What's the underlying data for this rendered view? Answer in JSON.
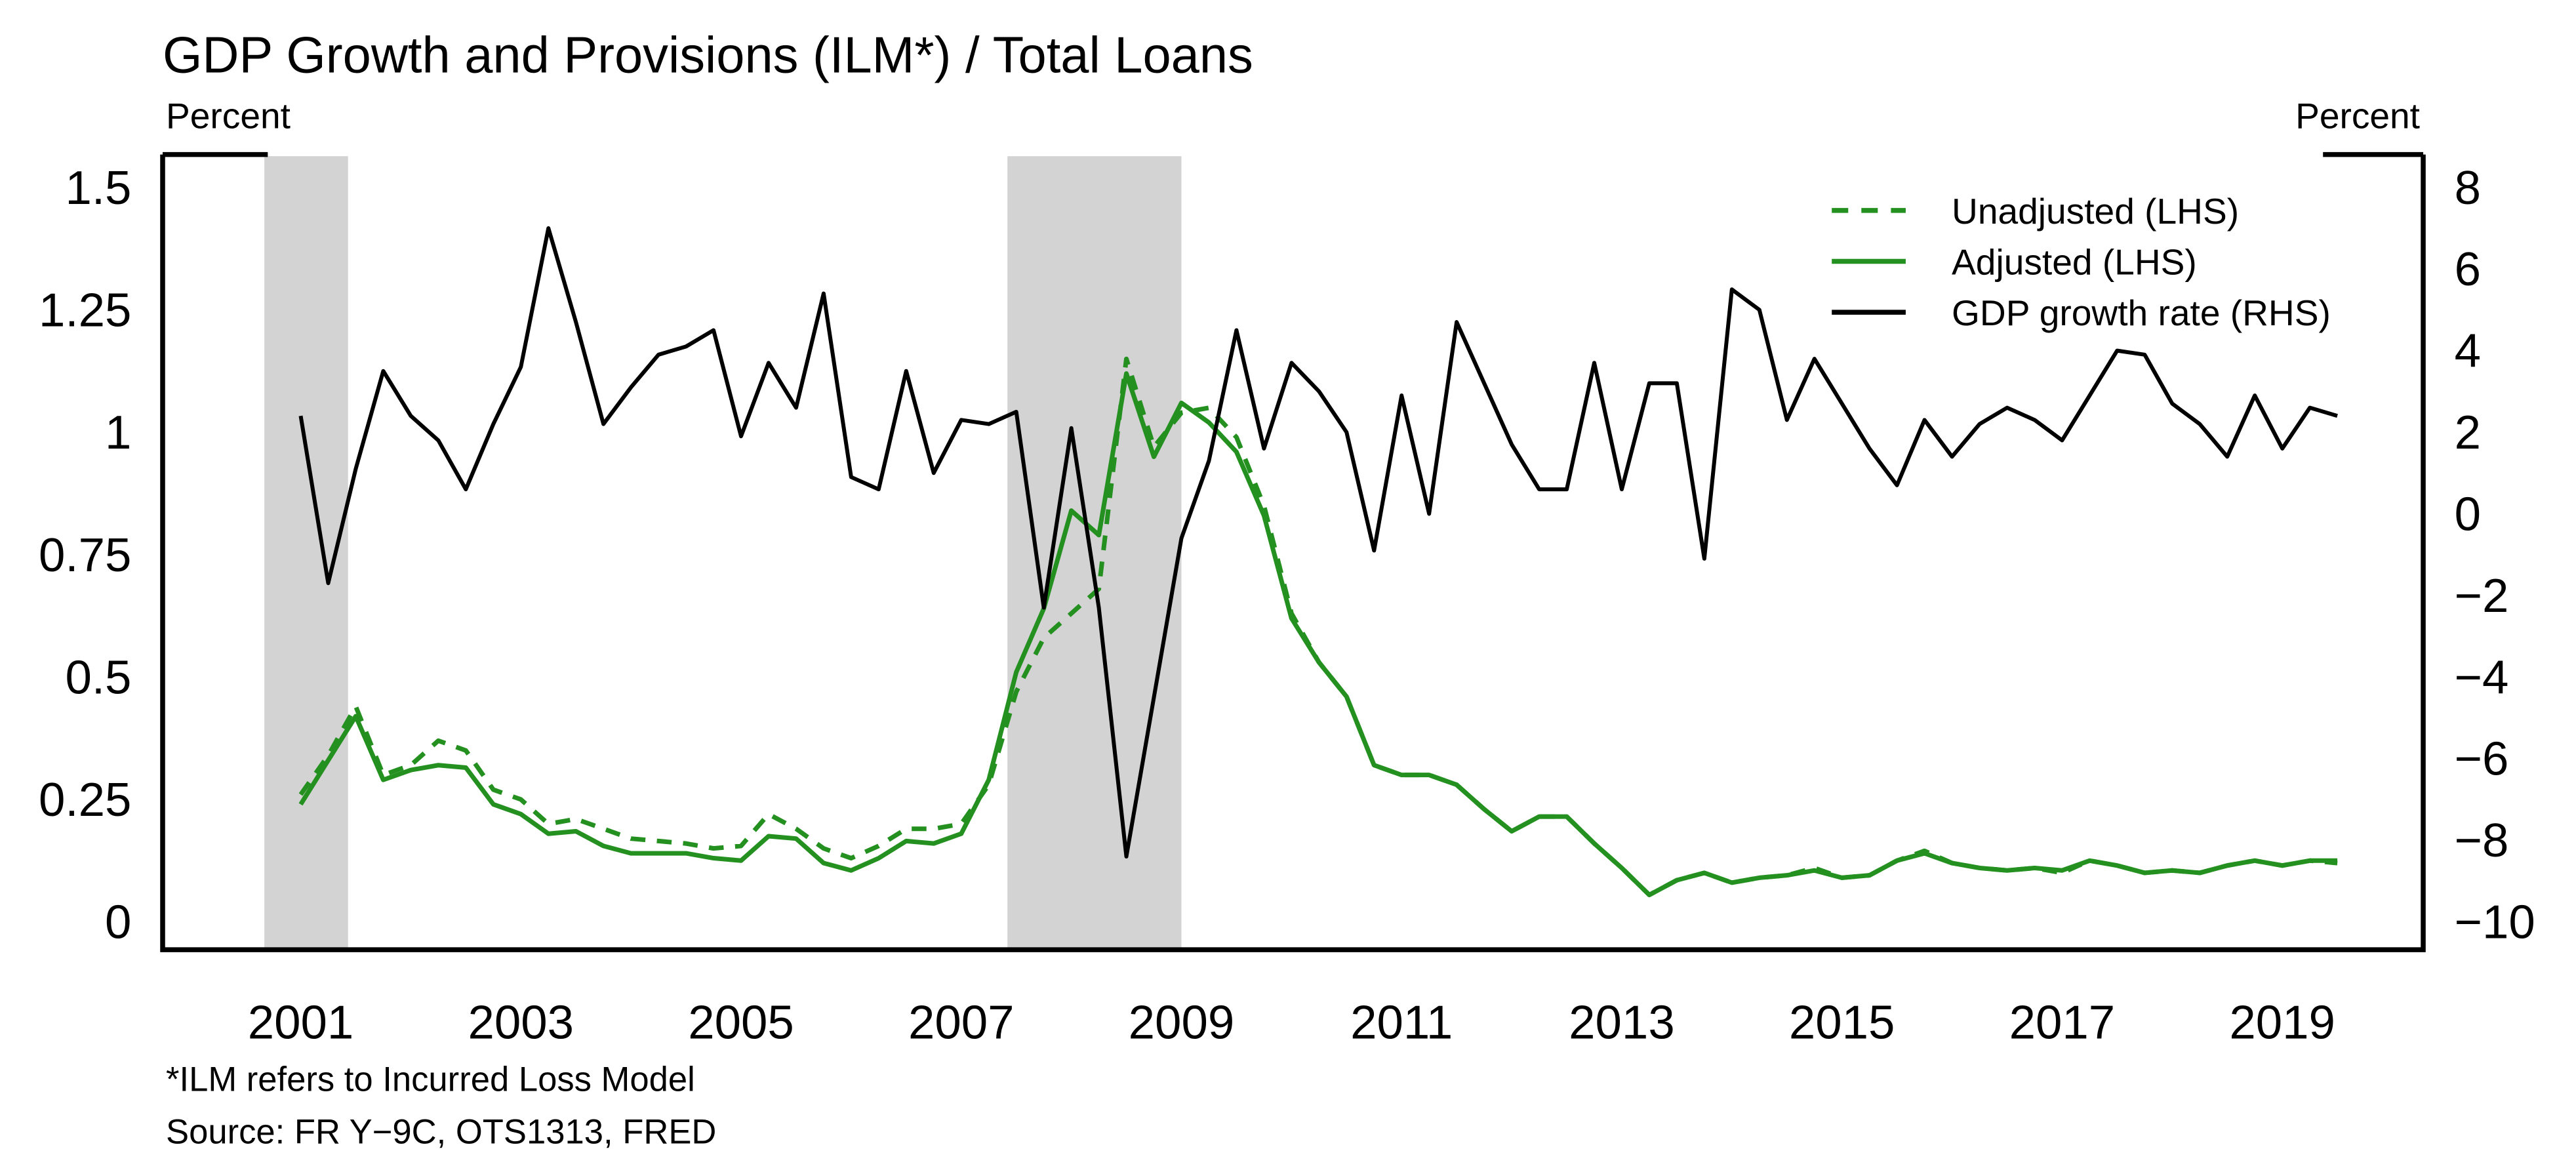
{
  "chart_data": {
    "type": "line",
    "title": "GDP Growth and Provisions (ILM*) / Total Loans",
    "y_label": "Percent",
    "y2_label": "Percent",
    "notes": [
      "*ILM refers to Incurred Loss Model",
      "Source: FR Y−9C, OTS1313, FRED"
    ],
    "x": [
      2001,
      2001.25,
      2001.5,
      2001.75,
      2002,
      2002.25,
      2002.5,
      2002.75,
      2003,
      2003.25,
      2003.5,
      2003.75,
      2004,
      2004.25,
      2004.5,
      2004.75,
      2005,
      2005.25,
      2005.5,
      2005.75,
      2006,
      2006.25,
      2006.5,
      2006.75,
      2007,
      2007.25,
      2007.5,
      2007.75,
      2008,
      2008.25,
      2008.5,
      2008.75,
      2009,
      2009.25,
      2009.5,
      2009.75,
      2010,
      2010.25,
      2010.5,
      2010.75,
      2011,
      2011.25,
      2011.5,
      2011.75,
      2012,
      2012.25,
      2012.5,
      2012.75,
      2013,
      2013.25,
      2013.5,
      2013.75,
      2014,
      2014.25,
      2014.5,
      2014.75,
      2015,
      2015.25,
      2015.5,
      2015.75,
      2016,
      2016.25,
      2016.5,
      2016.75,
      2017,
      2017.25,
      2017.5,
      2017.75,
      2018,
      2018.25,
      2018.5,
      2018.75,
      2019,
      2019.25,
      2019.5
    ],
    "series": [
      {
        "name": "Unadjusted (LHS)",
        "color": "#23901f",
        "dashed": true,
        "values": [
          0.26,
          0.34,
          0.44,
          0.3,
          0.32,
          0.37,
          0.35,
          0.27,
          0.25,
          0.2,
          0.21,
          0.19,
          0.17,
          0.165,
          0.16,
          0.15,
          0.155,
          0.22,
          0.19,
          0.15,
          0.13,
          0.155,
          0.19,
          0.19,
          0.2,
          0.28,
          0.47,
          0.58,
          0.63,
          0.68,
          1.15,
          0.97,
          1.04,
          1.05,
          0.99,
          0.85,
          0.63,
          0.53,
          0.46,
          0.32,
          0.3,
          0.3,
          0.28,
          0.23,
          0.185,
          0.215,
          0.215,
          0.16,
          0.11,
          0.055,
          0.085,
          0.1,
          0.08,
          0.09,
          0.095,
          0.11,
          0.09,
          0.095,
          0.125,
          0.145,
          0.12,
          0.11,
          0.105,
          0.11,
          0.1,
          0.125,
          0.115,
          0.1,
          0.105,
          0.1,
          0.115,
          0.125,
          0.115,
          0.125,
          0.12
        ]
      },
      {
        "name": "Adjusted (LHS)",
        "color": "#23901f",
        "dashed": false,
        "values": [
          0.24,
          0.33,
          0.42,
          0.29,
          0.31,
          0.32,
          0.315,
          0.24,
          0.22,
          0.18,
          0.185,
          0.155,
          0.14,
          0.14,
          0.14,
          0.13,
          0.125,
          0.175,
          0.17,
          0.12,
          0.105,
          0.13,
          0.165,
          0.16,
          0.18,
          0.29,
          0.51,
          0.64,
          0.84,
          0.79,
          1.12,
          0.95,
          1.06,
          1.02,
          0.96,
          0.83,
          0.62,
          0.53,
          0.46,
          0.32,
          0.3,
          0.3,
          0.28,
          0.23,
          0.185,
          0.215,
          0.215,
          0.16,
          0.11,
          0.055,
          0.085,
          0.1,
          0.08,
          0.09,
          0.095,
          0.105,
          0.09,
          0.095,
          0.125,
          0.14,
          0.12,
          0.11,
          0.105,
          0.11,
          0.105,
          0.125,
          0.115,
          0.1,
          0.105,
          0.1,
          0.115,
          0.125,
          0.115,
          0.125,
          0.125
        ]
      },
      {
        "name": "GDP growth rate (RHS)",
        "color": "#000000",
        "dashed": false,
        "axis": "y2",
        "values": [
          2.4,
          -1.7,
          1.1,
          3.5,
          2.4,
          1.8,
          0.6,
          2.2,
          3.6,
          7.0,
          4.7,
          2.2,
          3.1,
          3.9,
          4.1,
          4.5,
          1.9,
          3.7,
          2.6,
          5.4,
          0.9,
          0.6,
          3.5,
          1.0,
          2.3,
          2.2,
          2.5,
          -2.3,
          2.1,
          -2.3,
          -8.4,
          -4.5,
          -0.6,
          1.3,
          4.5,
          1.6,
          3.7,
          3.0,
          2.0,
          -0.9,
          2.9,
          0.0,
          4.7,
          3.2,
          1.7,
          0.6,
          0.6,
          3.7,
          0.6,
          3.2,
          3.2,
          -1.1,
          5.5,
          5.0,
          2.3,
          3.8,
          2.7,
          1.6,
          0.7,
          2.3,
          1.4,
          2.2,
          2.6,
          2.3,
          1.8,
          2.9,
          4.0,
          3.9,
          2.7,
          2.2,
          1.4,
          2.9,
          1.6,
          2.6,
          2.4
        ]
      }
    ],
    "shaded_regions": [
      [
        2000.67,
        2001.43
      ],
      [
        2007.42,
        2009.0
      ]
    ],
    "shade_color": "#d3d3d3",
    "xlim": [
      1999.746,
      2020.28
    ],
    "xticks": [
      2001,
      2003,
      2005,
      2007,
      2009,
      2011,
      2013,
      2015,
      2017,
      2019
    ],
    "ylim": [
      -0.057,
      1.564
    ],
    "yticks": [
      0,
      0.25,
      0.5,
      0.75,
      1,
      1.25,
      1.5
    ],
    "y2lim": [
      -10.685,
      8.765
    ],
    "y2ticks": [
      {
        "value": -10,
        "label": "−10"
      },
      {
        "value": -8,
        "label": "−8"
      },
      {
        "value": -6,
        "label": "−6"
      },
      {
        "value": -4,
        "label": "−4"
      },
      {
        "value": -2,
        "label": "−2"
      },
      0,
      2,
      4,
      6,
      8
    ],
    "legend": "upper right"
  }
}
